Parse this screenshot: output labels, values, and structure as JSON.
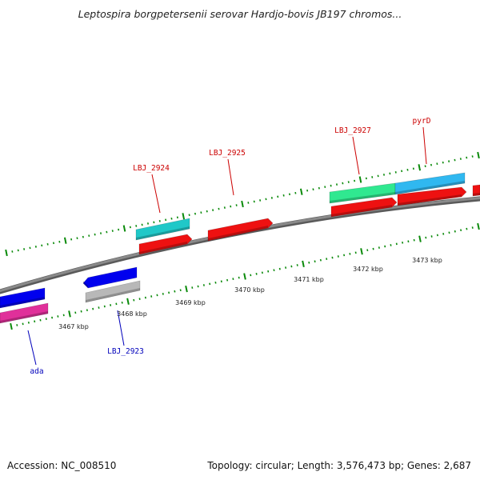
{
  "title": "Leptospira borgpetersenii serovar Hardjo-bovis JB197 chromos...",
  "footer": {
    "accession": "Accession: NC_008510",
    "summary": "Topology: circular; Length: 3,576,473 bp; Genes: 2,687"
  },
  "colors": {
    "backbone": "#8a8a8a",
    "tick": "#0a8a0a",
    "label_forward": "#cc0000",
    "label_reverse": "#0000bb"
  },
  "scale_labels": [
    "3467 kbp",
    "3468 kbp",
    "3469 kbp",
    "3470 kbp",
    "3471 kbp",
    "3472 kbp",
    "3473 kbp"
  ],
  "gene_labels": [
    {
      "name": "ada",
      "strand": "reverse"
    },
    {
      "name": "LBJ_2923",
      "strand": "reverse"
    },
    {
      "name": "LBJ_2924",
      "strand": "forward"
    },
    {
      "name": "LBJ_2925",
      "strand": "forward"
    },
    {
      "name": "LBJ_2927",
      "strand": "forward"
    },
    {
      "name": "pyrD",
      "strand": "forward"
    }
  ],
  "features": [
    {
      "id": "ada-cds",
      "track": "reverse-1",
      "color": "#0000ee"
    },
    {
      "id": "ada-gene",
      "track": "reverse-2",
      "color": "#e0309a"
    },
    {
      "id": "lbj2923-cds",
      "track": "reverse-1",
      "color": "#0000ee"
    },
    {
      "id": "lbj2923-gene",
      "track": "reverse-2",
      "color": "#b8b8b8"
    },
    {
      "id": "lbj2924-gene",
      "track": "forward-2",
      "color": "#20c8c8"
    },
    {
      "id": "lbj2924-cds",
      "track": "forward-1",
      "color": "#ee1111"
    },
    {
      "id": "lbj2925-cds",
      "track": "forward-1",
      "color": "#ee1111"
    },
    {
      "id": "lbj2927-gene",
      "track": "forward-2",
      "color": "#30e890"
    },
    {
      "id": "lbj2927-cds",
      "track": "forward-1",
      "color": "#ee1111"
    },
    {
      "id": "pyrd-gene",
      "track": "forward-2",
      "color": "#30b8f0"
    },
    {
      "id": "pyrd-cds",
      "track": "forward-1",
      "color": "#ee1111"
    },
    {
      "id": "next-cds",
      "track": "forward-1",
      "color": "#ee1111"
    }
  ]
}
